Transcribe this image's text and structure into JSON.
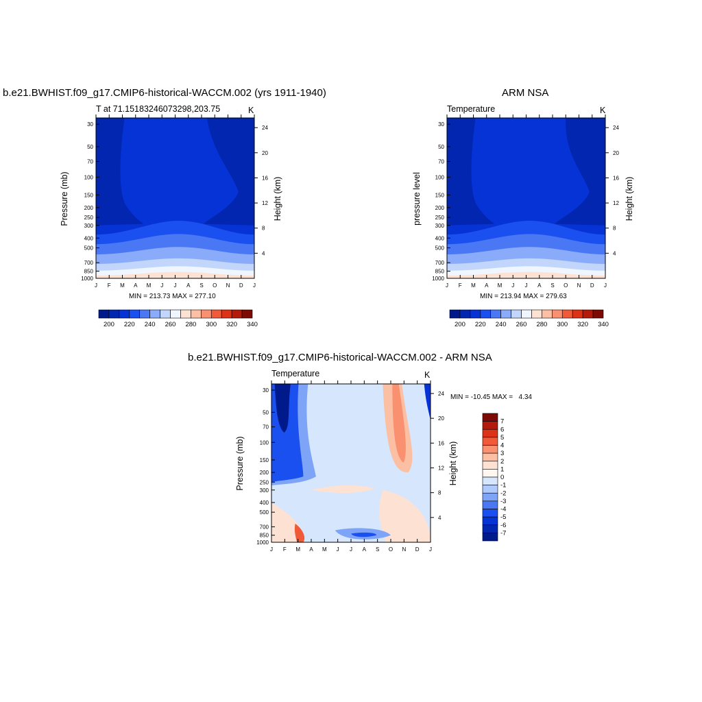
{
  "titles": {
    "model": "b.e21.BWHIST.f09_g17.CMIP6-historical-WACCM.002 (yrs 1911-1940)",
    "obs": "ARM NSA",
    "diff": "b.e21.BWHIST.f09_g17.CMIP6-historical-WACCM.002 - ARM NSA"
  },
  "panels": {
    "model": {
      "left_label": "T at 71.15183246073298,203.75",
      "units": "K",
      "ylabel": "Pressure (mb)",
      "ylabel_right": "Height (km)",
      "stats": "MIN = 213.73 MAX = 277.10"
    },
    "obs": {
      "left_label": "Temperature",
      "units": "K",
      "ylabel": "pressure level",
      "ylabel_right": "Height (km)",
      "stats": "MIN = 213.94 MAX = 279.63"
    },
    "diff": {
      "left_label": "Temperature",
      "units": "K",
      "ylabel": "Pressure (mb)",
      "ylabel_right": "Height (km)",
      "stats": "MIN = -10.45 MAX =   4.34"
    }
  },
  "chart_data": [
    {
      "type": "heatmap",
      "panel": "model",
      "x_tick_labels": [
        "J",
        "F",
        "M",
        "A",
        "M",
        "J",
        "J",
        "A",
        "S",
        "O",
        "N",
        "D",
        "J"
      ],
      "y_ticks": [
        30,
        50,
        70,
        100,
        150,
        200,
        250,
        300,
        400,
        500,
        700,
        850,
        1000
      ],
      "height_ticks_km": [
        4,
        8,
        12,
        16,
        20,
        24
      ],
      "colorbar_labels": [
        200,
        220,
        240,
        260,
        280,
        300,
        320,
        340
      ],
      "colorbar_colors": [
        "#001a8c",
        "#0226b0",
        "#0533d6",
        "#1a4ff0",
        "#4a78f5",
        "#8aabfa",
        "#c2d6fc",
        "#f0f6ff",
        "#fde2d3",
        "#fbc0a3",
        "#f99070",
        "#f05a38",
        "#dc3218",
        "#b31a0c",
        "#7d0a04"
      ],
      "min": 213.73,
      "max": 277.1
    },
    {
      "type": "heatmap",
      "panel": "obs",
      "x_tick_labels": [
        "J",
        "F",
        "M",
        "A",
        "M",
        "J",
        "J",
        "A",
        "S",
        "O",
        "N",
        "D",
        "J"
      ],
      "y_ticks": [
        30,
        50,
        70,
        100,
        150,
        200,
        250,
        300,
        400,
        500,
        700,
        850,
        1000
      ],
      "height_ticks_km": [
        4,
        8,
        12,
        16,
        20,
        24
      ],
      "colorbar_labels": [
        200,
        220,
        240,
        260,
        280,
        300,
        320,
        340
      ],
      "colorbar_colors": [
        "#001a8c",
        "#0226b0",
        "#0533d6",
        "#1a4ff0",
        "#4a78f5",
        "#8aabfa",
        "#c2d6fc",
        "#f0f6ff",
        "#fde2d3",
        "#fbc0a3",
        "#f99070",
        "#f05a38",
        "#dc3218",
        "#b31a0c",
        "#7d0a04"
      ],
      "min": 213.94,
      "max": 279.63
    },
    {
      "type": "heatmap",
      "panel": "diff",
      "x_tick_labels": [
        "J",
        "F",
        "M",
        "A",
        "M",
        "J",
        "J",
        "A",
        "S",
        "O",
        "N",
        "D",
        "J"
      ],
      "y_ticks": [
        30,
        50,
        70,
        100,
        150,
        200,
        250,
        300,
        400,
        500,
        700,
        850,
        1000
      ],
      "height_ticks_km": [
        4,
        8,
        12,
        16,
        20,
        24
      ],
      "colorbar_labels": [
        7,
        6,
        5,
        4,
        3,
        2,
        1,
        0,
        -1,
        -2,
        -3,
        -4,
        -5,
        -6,
        -7
      ],
      "colorbar_colors": [
        "#7d0a04",
        "#b31a0c",
        "#dc3218",
        "#f05a38",
        "#f99070",
        "#fbc0a3",
        "#fde2d3",
        "#fff7f0",
        "#d6e6fd",
        "#b0c9fb",
        "#7ea4f7",
        "#4a78f5",
        "#1a4ff0",
        "#0533d6",
        "#0226b0",
        "#001a8c"
      ],
      "min": -10.45,
      "max": 4.34
    }
  ]
}
